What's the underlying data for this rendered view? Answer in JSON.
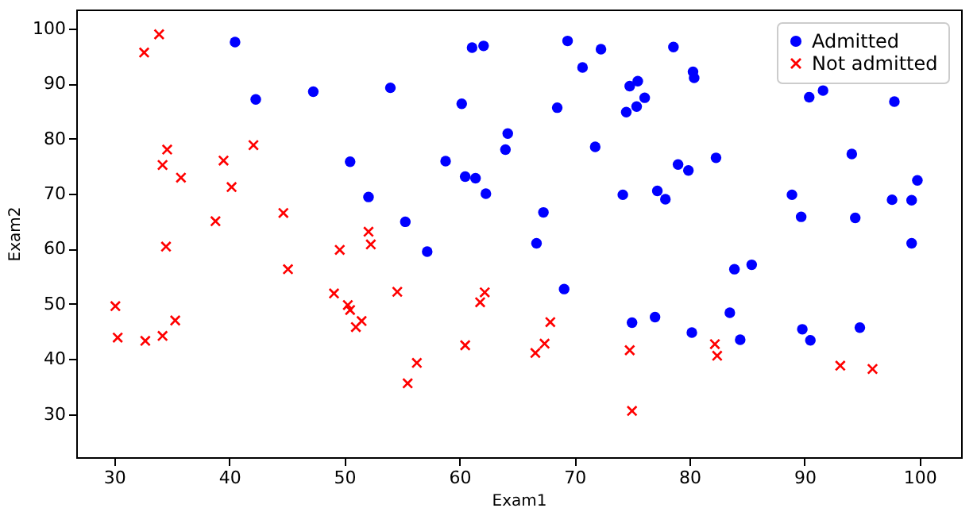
{
  "chart_data": {
    "type": "scatter",
    "xlabel": "Exam1",
    "ylabel": "Exam2",
    "xlim": [
      26.7,
      103.6
    ],
    "ylim": [
      22.2,
      103.4
    ],
    "xticks": [
      30,
      40,
      50,
      60,
      70,
      80,
      90,
      100
    ],
    "yticks": [
      30,
      40,
      50,
      60,
      70,
      80,
      90,
      100
    ],
    "legend": "top right",
    "series": [
      {
        "name": "Admitted",
        "color": "#0000ff",
        "marker": "circle",
        "x": [
          60.2,
          79.0,
          61.1,
          75.0,
          76.1,
          84.4,
          82.3,
          69.4,
          54.0,
          69.1,
          70.7,
          77.0,
          89.7,
          77.9,
          62.3,
          80.2,
          61.4,
          85.4,
          52.1,
          64.2,
          83.9,
          94.4,
          77.2,
          97.8,
          62.1,
          91.6,
          79.9,
          99.3,
          90.5,
          97.6,
          74.2,
          71.8,
          75.4,
          40.5,
          80.3,
          66.7,
          64.0,
          72.3,
          60.5,
          58.8,
          99.8,
          47.3,
          50.5,
          88.9,
          94.8,
          67.3,
          57.2,
          80.4,
          68.5,
          75.5,
          78.6,
          94.1,
          90.4,
          74.5,
          89.8,
          83.5,
          42.3,
          99.3,
          55.3,
          74.8
        ],
        "values": [
          86.3,
          75.3,
          96.5,
          46.6,
          87.4,
          43.5,
          76.5,
          97.7,
          89.2,
          52.7,
          92.9,
          47.6,
          65.8,
          69.0,
          70.0,
          44.8,
          72.8,
          57.1,
          69.4,
          80.9,
          56.3,
          65.6,
          70.5,
          86.7,
          96.8,
          88.7,
          74.2,
          61.0,
          43.4,
          68.9,
          69.8,
          78.5,
          85.8,
          97.5,
          92.1,
          61.0,
          78.0,
          96.2,
          73.1,
          75.9,
          72.4,
          88.5,
          75.8,
          69.8,
          45.7,
          66.6,
          59.5,
          91.0,
          85.6,
          90.4,
          96.6,
          77.2,
          87.5,
          84.8,
          45.4,
          48.4,
          87.1,
          68.8,
          64.9,
          89.5
        ]
      },
      {
        "name": "Not admitted",
        "color": "#ff0000",
        "marker": "cross",
        "x": [
          34.6,
          30.3,
          35.8,
          45.1,
          95.9,
          75.0,
          39.5,
          67.9,
          67.4,
          50.5,
          34.2,
          93.1,
          61.8,
          38.8,
          52.1,
          40.2,
          54.6,
          33.9,
          74.8,
          34.2,
          51.5,
          82.4,
          51.0,
          62.2,
          34.5,
          50.3,
          49.6,
          32.6,
          35.3,
          56.3,
          30.1,
          44.7,
          66.6,
          49.1,
          32.7,
          60.5,
          82.2,
          42.1,
          52.3,
          55.5
        ],
        "values": [
          78.0,
          43.9,
          72.9,
          56.3,
          38.2,
          30.6,
          76.0,
          46.7,
          42.8,
          48.9,
          44.2,
          38.8,
          50.3,
          65.0,
          63.1,
          71.2,
          52.2,
          98.9,
          41.6,
          75.2,
          46.9,
          40.6,
          45.8,
          52.1,
          60.4,
          49.8,
          59.8,
          95.6,
          47.0,
          39.3,
          49.6,
          66.5,
          41.1,
          51.9,
          43.3,
          42.5,
          42.7,
          78.8,
          60.8,
          35.6
        ]
      }
    ]
  }
}
